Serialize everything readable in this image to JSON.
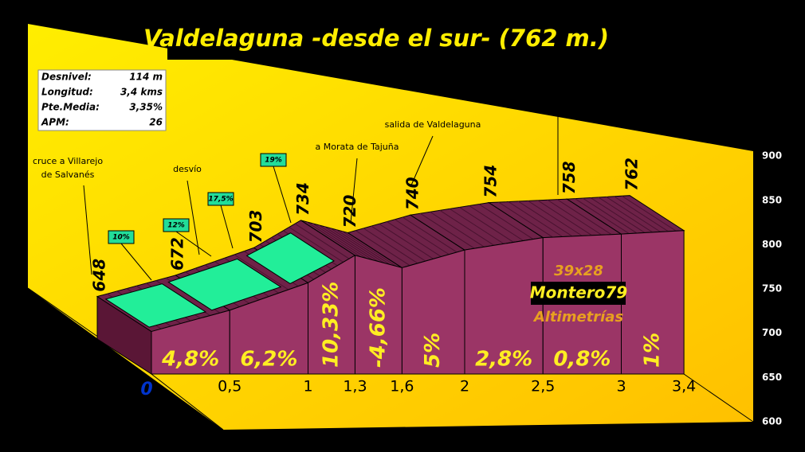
{
  "chart_data": {
    "type": "profile",
    "title": "Valdelaguna -desde el sur- (762 m.)",
    "stats": {
      "rows": [
        [
          "Desnivel:",
          "114 m"
        ],
        [
          "Longitud:",
          "3,4 kms"
        ],
        [
          "Pte.Media:",
          "3,35%"
        ],
        [
          "APM:",
          "26"
        ]
      ]
    },
    "x": [
      0,
      0.5,
      1,
      1.3,
      1.6,
      2,
      2.5,
      3,
      3.4
    ],
    "values": [
      648,
      672,
      703,
      734,
      720,
      740,
      754,
      758,
      762
    ],
    "xticks": [
      0,
      {
        "value": 0.5,
        "label": "0,5"
      },
      1,
      {
        "value": 1.3,
        "label": "1,3"
      },
      {
        "value": 1.6,
        "label": "1,6"
      },
      2,
      {
        "value": 2.5,
        "label": "2,5"
      },
      3,
      {
        "value": 3.4,
        "label": "3,4"
      }
    ],
    "ylim": [
      600,
      900
    ],
    "yticks": [
      600,
      650,
      700,
      750,
      800,
      850,
      900
    ],
    "segments": {
      "values": [
        4.8,
        6.2,
        10.33,
        -4.66,
        5,
        2.8,
        0.8,
        1
      ],
      "value_labels": [
        "4,8%",
        "6,2%",
        "10,33%",
        "-4,66%",
        "5%",
        "2,8%",
        "0,8%",
        "1%"
      ]
    },
    "max_gradients": {
      "values": [
        10,
        12,
        17.5,
        19
      ],
      "value_labels": [
        "10%",
        "12%",
        "17,5%",
        "19%"
      ]
    },
    "annotations": [
      [
        "cruce a Villarejo",
        "de Salvanés"
      ],
      [
        "desvío"
      ],
      [
        "a Morata de Tajuña"
      ],
      [
        "salida de Valdelaguna"
      ]
    ],
    "watermark": [
      "39x28",
      "Montero79",
      "Altimetrías"
    ]
  }
}
